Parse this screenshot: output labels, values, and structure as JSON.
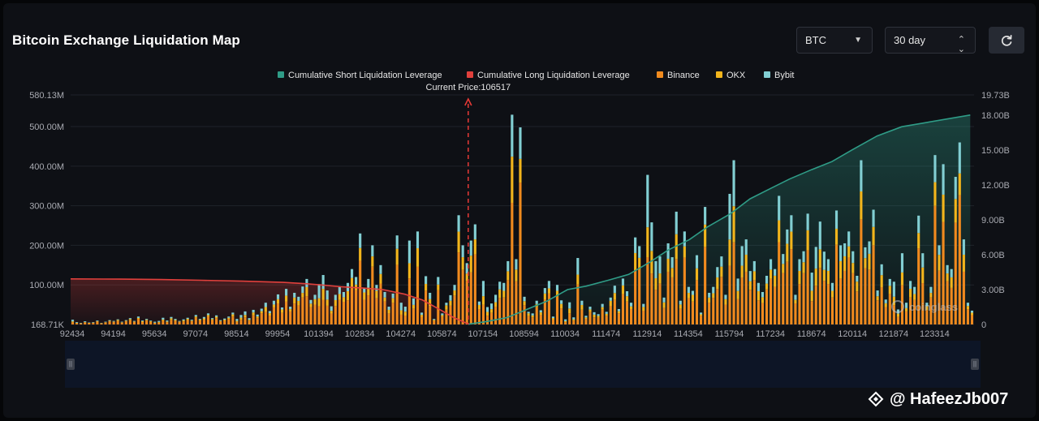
{
  "header": {
    "title": "Bitcoin Exchange Liquidation Map",
    "coin_select": "BTC",
    "range_select": "30 day"
  },
  "watermark": {
    "text": "@ HafeezJb007",
    "logo": "coinglass"
  },
  "colors": {
    "short_line": "#2f9c87",
    "long_line": "#e0403c",
    "binance": "#f08a1e",
    "okx": "#f2b51c",
    "bybit": "#82cfd3",
    "price_line": "#e83a36"
  },
  "chart_data": {
    "type": "bar",
    "current_price_label": "Current Price:106517",
    "current_price": 106517,
    "legend": [
      "Cumulative Short Liquidation Leverage",
      "Cumulative Long Liquidation Leverage",
      "Binance",
      "OKX",
      "Bybit"
    ],
    "legend_position": "top-center",
    "x_tick_labels": [
      "92434",
      "94194",
      "95634",
      "97074",
      "98514",
      "99954",
      "101394",
      "102834",
      "104274",
      "105874",
      "107154",
      "108594",
      "110034",
      "111474",
      "112914",
      "114354",
      "115794",
      "117234",
      "118674",
      "120114",
      "121874",
      "123314"
    ],
    "x_range": [
      92434,
      124434
    ],
    "y_left_ticks": [
      "580.13M",
      "500.00M",
      "400.00M",
      "300.00M",
      "200.00M",
      "100.00M",
      "168.71K"
    ],
    "y_left_range_m": [
      0,
      580
    ],
    "y_right_ticks": [
      "19.73B",
      "18.00B",
      "15.00B",
      "12.00B",
      "9.00B",
      "6.00B",
      "3.00B",
      "0"
    ],
    "y_right_range_b": [
      0,
      19.73
    ],
    "grid": true,
    "bar_totals_m": [
      12,
      6,
      4,
      8,
      5,
      6,
      10,
      4,
      7,
      11,
      9,
      13,
      7,
      11,
      16,
      9,
      20,
      10,
      14,
      10,
      7,
      9,
      17,
      10,
      19,
      14,
      9,
      13,
      17,
      12,
      24,
      14,
      19,
      28,
      16,
      23,
      11,
      15,
      20,
      30,
      14,
      24,
      33,
      16,
      37,
      25,
      40,
      55,
      34,
      60,
      76,
      43,
      90,
      45,
      80,
      70,
      96,
      115,
      62,
      75,
      102,
      125,
      86,
      46,
      75,
      95,
      82,
      105,
      140,
      120,
      230,
      92,
      115,
      200,
      100,
      150,
      82,
      45,
      78,
      225,
      55,
      45,
      212,
      66,
      235,
      30,
      122,
      80,
      14,
      120,
      28,
      55,
      74,
      100,
      276,
      200,
      155,
      212,
      253,
      58,
      110,
      44,
      53,
      75,
      108,
      105,
      160,
      530,
      165,
      498,
      70,
      32,
      28,
      60,
      36,
      92,
      110,
      20,
      100,
      61,
      13,
      56,
      18,
      168,
      60,
      22,
      45,
      31,
      26,
      52,
      32,
      68,
      98,
      39,
      116,
      84,
      55,
      220,
      198,
      52,
      378,
      258,
      160,
      172,
      68,
      205,
      170,
      285,
      60,
      235,
      95,
      85,
      175,
      30,
      297,
      80,
      95,
      145,
      172,
      75,
      330,
      415,
      116,
      198,
      215,
      135,
      160,
      105,
      82,
      123,
      165,
      140,
      325,
      178,
      240,
      276,
      75,
      165,
      185,
      280,
      131,
      196,
      260,
      184,
      165,
      105,
      288,
      200,
      205,
      235,
      185,
      123,
      415,
      195,
      210,
      290,
      86,
      152,
      63,
      115,
      108,
      38,
      180,
      55,
      110,
      95,
      275,
      180,
      55,
      95,
      428,
      200,
      405,
      150,
      140,
      373,
      460,
      215,
      55,
      35
    ],
    "bar_binance_share": [
      0.45,
      0.5,
      0.55,
      0.6,
      0.62,
      0.65,
      0.7,
      0.58,
      0.66,
      0.72,
      0.7,
      0.68,
      0.64,
      0.73,
      0.66,
      0.69,
      0.71,
      0.62,
      0.7,
      0.67
    ],
    "bar_okx_share": [
      0.2,
      0.22,
      0.18,
      0.15,
      0.2,
      0.16,
      0.14,
      0.22,
      0.18,
      0.12,
      0.14,
      0.2,
      0.17,
      0.13,
      0.19,
      0.16,
      0.12,
      0.2,
      0.15,
      0.18
    ],
    "cumulative_long_b": [
      3.92,
      3.9,
      3.86,
      3.8,
      3.72,
      3.62,
      3.5,
      3.38,
      3.25,
      3.12,
      3.0,
      2.6,
      2.1,
      1.3,
      0.6,
      0.05
    ],
    "cumulative_long_x": [
      92434,
      94194,
      95634,
      97074,
      98514,
      99954,
      100800,
      101394,
      102000,
      102834,
      103500,
      104274,
      104900,
      105500,
      106000,
      106517
    ],
    "cumulative_short_b": [
      0.02,
      0.25,
      0.6,
      1.3,
      2.0,
      3.0,
      3.3,
      3.8,
      4.3,
      5.3,
      6.4,
      7.3,
      8.4,
      9.5,
      10.8,
      11.7,
      12.5,
      13.3,
      14.0,
      15.0,
      16.2,
      17.0,
      17.3,
      18.0
    ],
    "cumulative_short_x": [
      106517,
      107154,
      107900,
      108594,
      109300,
      110034,
      110700,
      111474,
      112200,
      112914,
      113600,
      114354,
      115000,
      115794,
      116500,
      117234,
      117900,
      118674,
      119400,
      120114,
      121000,
      121874,
      122600,
      124300
    ]
  }
}
